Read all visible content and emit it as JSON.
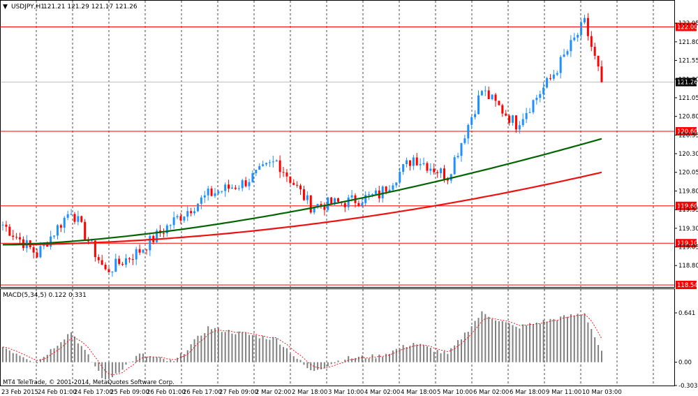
{
  "window": {
    "title": "USDJPY,H1",
    "ohlc": "121.21 121.29 121.17 121.26"
  },
  "colors": {
    "bull": "#1e90ff",
    "bear": "#ff0000",
    "grid": "#000000",
    "hline": "#ff0000",
    "ma_fast": "#006400",
    "ma_slow": "#ee1111",
    "macd_hist": "#808080",
    "macd_signal": "#ff0000",
    "price_line": "#c0c0c0"
  },
  "price_panel": {
    "ylim": [
      118.54,
      122.22
    ],
    "y_ticks": [
      "122.05",
      "121.80",
      "121.55",
      "121.30",
      "121.05",
      "120.80",
      "120.55",
      "120.30",
      "120.05",
      "119.80",
      "119.55",
      "119.30",
      "119.05",
      "118.80"
    ],
    "current_price": "121.26",
    "hlines": [
      "122.00",
      "120.60",
      "119.60",
      "119.10",
      "118.54"
    ]
  },
  "macd_panel": {
    "title": "MACD(5,34,5) 0.122 0.331",
    "y_ticks": [
      "0.641",
      "0.00",
      "-0.303"
    ]
  },
  "x_ticks": [
    "23 Feb 2015",
    "24 Feb 01:00",
    "24 Feb 17:00",
    "25 Feb 09:00",
    "26 Feb 01:00",
    "26 Feb 17:00",
    "27 Feb 09:00",
    "2 Mar 02:00",
    "2 Mar 18:00",
    "3 Mar 10:00",
    "4 Mar 02:00",
    "4 Mar 18:00",
    "5 Mar 10:00",
    "6 Mar 02:00",
    "6 Mar 18:00",
    "9 Mar 11:00",
    "10 Mar 03:00"
  ],
  "copyright": "MT4 TeleTrade, © 2001-2014, MetaQuotes Software Corp.",
  "chart_data": [
    {
      "type": "candlestick",
      "title": "USDJPY,H1",
      "ylim": [
        118.54,
        122.22
      ],
      "series": [
        {
          "name": "price_trend",
          "x": [
            0,
            10,
            20,
            30,
            40,
            50,
            60,
            70,
            80,
            90,
            100,
            110,
            120,
            130,
            140,
            150,
            160,
            170,
            175
          ],
          "values": [
            119.35,
            118.95,
            119.55,
            118.72,
            119.0,
            119.4,
            119.75,
            119.9,
            120.2,
            119.6,
            119.65,
            119.75,
            120.25,
            120.0,
            121.15,
            120.7,
            121.3,
            122.05,
            121.26
          ]
        },
        {
          "name": "MA fast",
          "values_start": 119.08,
          "values_end": 120.5
        },
        {
          "name": "MA slow",
          "values_start": 119.08,
          "values_end": 120.05
        }
      ],
      "hlines": [
        122.0,
        120.6,
        119.6,
        119.1,
        118.54
      ],
      "grid": true
    },
    {
      "type": "bar",
      "title": "MACD(5,34,5) 0.122 0.331",
      "ylim": [
        -0.303,
        0.641
      ],
      "series": [
        {
          "name": "MACD",
          "x": [
            0,
            10,
            20,
            30,
            40,
            50,
            60,
            70,
            80,
            90,
            100,
            110,
            120,
            130,
            140,
            150,
            160,
            170,
            175
          ],
          "values": [
            0.2,
            0.0,
            0.4,
            -0.25,
            0.1,
            0.0,
            0.45,
            0.37,
            0.3,
            -0.12,
            0.05,
            0.08,
            0.25,
            0.1,
            0.64,
            0.45,
            0.55,
            0.64,
            0.122
          ]
        },
        {
          "name": "Signal",
          "last": 0.331
        }
      ]
    }
  ]
}
